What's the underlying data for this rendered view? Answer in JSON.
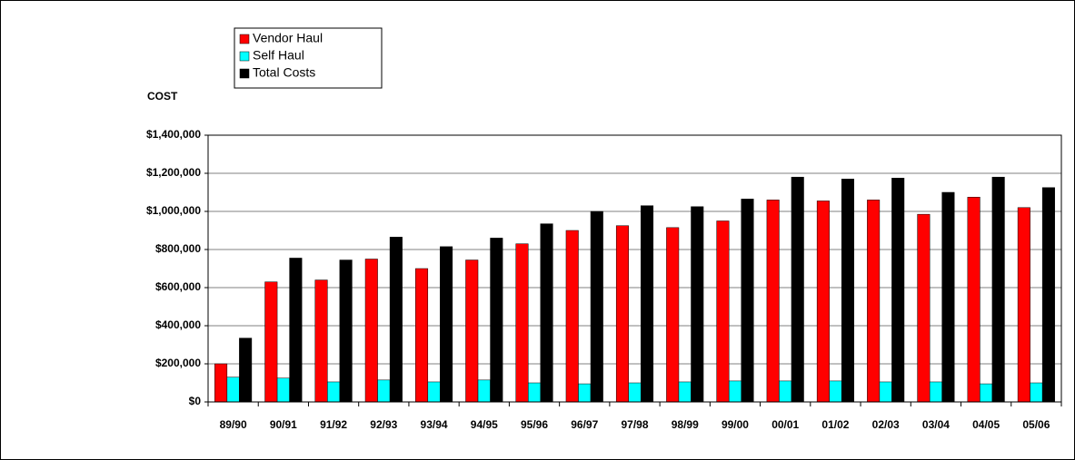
{
  "chart_data": {
    "type": "bar",
    "y_label": "COST",
    "categories": [
      "89/90",
      "90/91",
      "91/92",
      "92/93",
      "93/94",
      "94/95",
      "95/96",
      "96/97",
      "97/98",
      "98/99",
      "99/00",
      "00/01",
      "01/02",
      "02/03",
      "03/04",
      "04/05",
      "05/06"
    ],
    "series": [
      {
        "name": "Vendor Haul",
        "color": "#ff0000",
        "values": [
          200000,
          630000,
          640000,
          750000,
          700000,
          745000,
          830000,
          900000,
          925000,
          915000,
          950000,
          1060000,
          1055000,
          1060000,
          985000,
          1075000,
          1020000
        ]
      },
      {
        "name": "Self Haul",
        "color": "#00ffff",
        "values": [
          130000,
          125000,
          105000,
          115000,
          105000,
          115000,
          100000,
          95000,
          100000,
          105000,
          110000,
          110000,
          110000,
          105000,
          105000,
          95000,
          100000
        ]
      },
      {
        "name": "Total Costs",
        "color": "#000000",
        "values": [
          335000,
          755000,
          745000,
          865000,
          815000,
          860000,
          935000,
          1000000,
          1030000,
          1025000,
          1065000,
          1180000,
          1170000,
          1175000,
          1100000,
          1180000,
          1125000
        ]
      }
    ],
    "ylim": [
      0,
      1400000
    ],
    "yticks": [
      {
        "value": 0,
        "label": "$0"
      },
      {
        "value": 200000,
        "label": "$200,000"
      },
      {
        "value": 400000,
        "label": "$400,000"
      },
      {
        "value": 600000,
        "label": "$600,000"
      },
      {
        "value": 800000,
        "label": "$800,000"
      },
      {
        "value": 1000000,
        "label": "$1,000,000"
      },
      {
        "value": 1200000,
        "label": "$1,200,000"
      },
      {
        "value": 1400000,
        "label": "$1,400,000"
      }
    ],
    "grid": true,
    "legend": "top-left"
  }
}
